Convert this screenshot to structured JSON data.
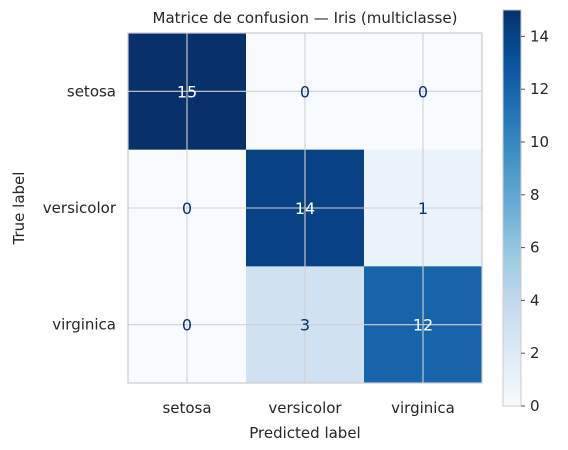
{
  "chart_data": {
    "type": "heatmap",
    "title": "Matrice de confusion — Iris (multiclasse)",
    "xlabel": "Predicted label",
    "ylabel": "True label",
    "x_categories": [
      "setosa",
      "versicolor",
      "virginica"
    ],
    "y_categories": [
      "setosa",
      "versicolor",
      "virginica"
    ],
    "values": [
      [
        15,
        0,
        0
      ],
      [
        0,
        14,
        1
      ],
      [
        0,
        3,
        12
      ]
    ],
    "colormap": "Blues",
    "colorbar": {
      "min": 0,
      "max": 15,
      "ticks": [
        "0",
        "2",
        "4",
        "6",
        "8",
        "10",
        "12",
        "14"
      ]
    },
    "grid": true,
    "text_colors": {
      "dark": "#08306b",
      "light": "#ffffff"
    }
  }
}
